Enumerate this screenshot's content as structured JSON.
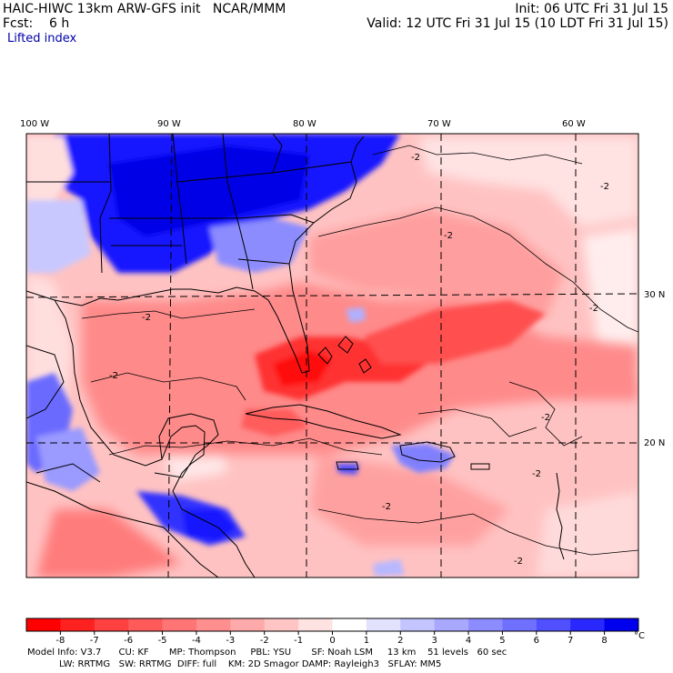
{
  "header": {
    "left_line1": "HAIC-HIWC 13km ARW-GFS init   NCAR/MMM",
    "left_line2": "Fcst:    6 h",
    "right_line1": "Init: 06 UTC Fri 31 Jul 15",
    "right_line2": "Valid: 12 UTC Fri 31 Jul 15 (10 LDT Fri 31 Jul 15)",
    "field_name": "Lifted index"
  },
  "map": {
    "lon_labels": [
      "100 W",
      "90 W",
      "80 W",
      "70 W",
      "60 W"
    ],
    "lat_labels": [
      "30 N",
      "20 N"
    ],
    "contour_labels": [
      "-2",
      "-2",
      "-2",
      "-2",
      "-2",
      "-2",
      "-2",
      "-2",
      "-2",
      "-2"
    ]
  },
  "colorbar": {
    "unit": "°C",
    "tick_labels": [
      "-8",
      "-7",
      "-6",
      "-5",
      "-4",
      "-3",
      "-2",
      "-1",
      "0",
      "1",
      "2",
      "3",
      "4",
      "5",
      "6",
      "7",
      "8"
    ],
    "colors": [
      "#ff0000",
      "#ff2020",
      "#ff4040",
      "#ff5a5a",
      "#ff7474",
      "#ff8e8e",
      "#ffaaaa",
      "#ffc4c4",
      "#ffe2e2",
      "#ffffff",
      "#e2e2ff",
      "#c4c4ff",
      "#a8a8ff",
      "#8c8cff",
      "#7070ff",
      "#5050ff",
      "#2828ff",
      "#0000ee"
    ]
  },
  "footer": {
    "line1": "Model Info: V3.7      CU: KF       MP: Thompson     PBL: YSU       SF: Noah LSM     13 km    51 levels   60 sec",
    "line2": "           LW: RRTMG   SW: RRTMG  DIFF: full    KM: 2D Smagor DAMP: Rayleigh3   SFLAY: MM5"
  }
}
